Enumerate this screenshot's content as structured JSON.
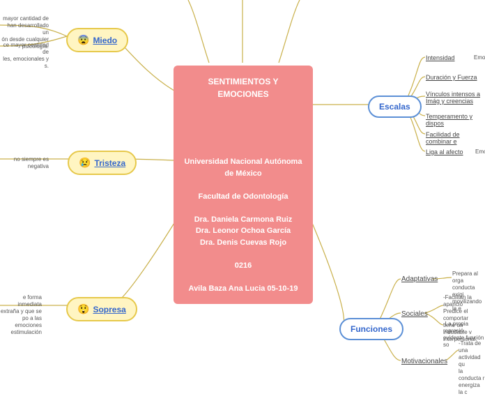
{
  "center": {
    "title": "SENTIMIENTOS Y EMOCIONES",
    "line2": "Universidad Nacional Autónoma de México",
    "line3": "Facultad de Odontología",
    "line4": "Dra. Daniela Carmona Ruiz",
    "line5": "Dra. Leonor Ochoa García",
    "line6": "Dra. Denis Cuevas Rojo",
    "line7": "0216",
    "line8": "Avila Baza Ana Lucia 05-10-19"
  },
  "left": {
    "miedo": {
      "emoji": "😨",
      "label": "Miedo",
      "desc1": "mayor cantidad de\nhan desarrollado un\nón desde cualquier\npsicología.",
      "desc2": "ce mayor cantidad de\nles, emocionales y\ns."
    },
    "tristeza": {
      "emoji": "😢",
      "label": "Tristeza",
      "desc": "no siempre es negativa"
    },
    "sopresa": {
      "emoji": "😲",
      "label": "Sopresa",
      "desc": "e forma inmediata\nextraña y que se\npo a las emociones\nestimulación"
    }
  },
  "right": {
    "escalas": {
      "label": "Escalas",
      "items": [
        "Intensidad",
        "Duración y Fuerza",
        "Vínculos intensos a Imág y creencias",
        "Temperamento y dispos",
        "Facilidad de combinar e",
        "Liga al afecto"
      ],
      "notes": [
        "Emoc",
        "",
        "",
        "",
        "",
        "Emoc"
      ]
    },
    "funciones": {
      "label": "Funciones",
      "items": [
        {
          "name": "Adaptativas",
          "desc": "Prepara al orga\nconducta exigi\nmovilizando la e"
        },
        {
          "name": "Sociales",
          "desc1": "-Facilitan la aparició\nPredice el comportar\ntiene un indudable v\ninterpersonal.",
          "desc2": "-La propia represió\nevidente función so"
        },
        {
          "name": "Motivacionales",
          "desc": "-Trata de una\nactividad qu\nla conducta r\nenergiza la c"
        }
      ]
    }
  },
  "colors": {
    "center_bg": "#f28c8c",
    "pill_yellow_bg": "#fff5c2",
    "pill_yellow_border": "#e6c84a",
    "blue_border": "#5b8fd6",
    "link": "#3366cc",
    "connector": "#c9b04a"
  }
}
